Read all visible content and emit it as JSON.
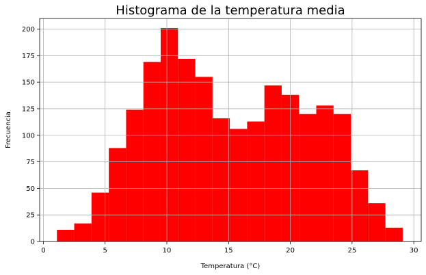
{
  "chart_data": {
    "type": "bar",
    "title": "Histograma de la temperatura media",
    "xlabel": "Temperatura (°C)",
    "ylabel": "Frecuencia",
    "xlim": [
      -0.3,
      30.6
    ],
    "ylim": [
      0,
      210
    ],
    "grid": true,
    "bar_color": "#ff0000",
    "bins": [
      {
        "x0": 1.1,
        "x1": 2.5,
        "count": 11
      },
      {
        "x0": 2.5,
        "x1": 3.9,
        "count": 17
      },
      {
        "x0": 3.9,
        "x1": 5.3,
        "count": 46
      },
      {
        "x0": 5.3,
        "x1": 6.7,
        "count": 88
      },
      {
        "x0": 6.7,
        "x1": 8.1,
        "count": 124
      },
      {
        "x0": 8.1,
        "x1": 9.5,
        "count": 169
      },
      {
        "x0": 9.5,
        "x1": 10.9,
        "count": 201
      },
      {
        "x0": 10.9,
        "x1": 12.3,
        "count": 172
      },
      {
        "x0": 12.3,
        "x1": 13.7,
        "count": 155
      },
      {
        "x0": 13.7,
        "x1": 15.1,
        "count": 116
      },
      {
        "x0": 15.1,
        "x1": 16.5,
        "count": 106
      },
      {
        "x0": 16.5,
        "x1": 17.9,
        "count": 113
      },
      {
        "x0": 17.9,
        "x1": 19.3,
        "count": 147
      },
      {
        "x0": 19.3,
        "x1": 20.7,
        "count": 138
      },
      {
        "x0": 20.7,
        "x1": 22.1,
        "count": 120
      },
      {
        "x0": 22.1,
        "x1": 23.5,
        "count": 128
      },
      {
        "x0": 23.5,
        "x1": 24.9,
        "count": 120
      },
      {
        "x0": 24.9,
        "x1": 26.3,
        "count": 67
      },
      {
        "x0": 26.3,
        "x1": 27.7,
        "count": 36
      },
      {
        "x0": 27.7,
        "x1": 29.1,
        "count": 13
      }
    ],
    "x_ticks": [
      0,
      5,
      10,
      15,
      20,
      25,
      30
    ],
    "y_ticks": [
      0,
      25,
      50,
      75,
      100,
      125,
      150,
      175,
      200
    ]
  }
}
